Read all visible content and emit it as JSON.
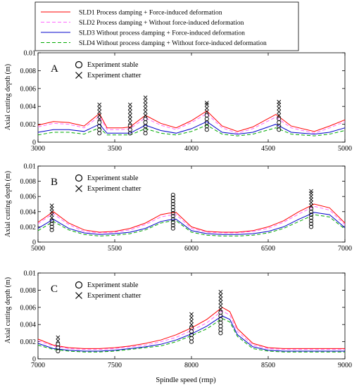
{
  "legend": {
    "entries": [
      {
        "label": "SLD1   Process damping + Force-induced deformation",
        "color": "#ff0000",
        "dash": "solid"
      },
      {
        "label": "SLD2   Process damping + Without force-induced deformation",
        "color": "#ff66ff",
        "dash": "dashed"
      },
      {
        "label": "SLD3   Without process damping + Force-induced deformation",
        "color": "#0000cc",
        "dash": "solid"
      },
      {
        "label": "SLD4   Without process damping + Without force-induced deformation",
        "color": "#00aa00",
        "dash": "dashed"
      }
    ]
  },
  "chart_data": [
    {
      "type": "line",
      "panel_label": "A",
      "ylabel": "Axial cutting depth  (m)",
      "xlabel": "",
      "xlim": [
        3000,
        5000
      ],
      "ylim": [
        0,
        0.01
      ],
      "xticks": [
        3000,
        3500,
        4000,
        4500,
        5000
      ],
      "yticks": [
        0,
        0.002,
        0.004,
        0.006,
        0.008,
        0.01
      ],
      "ytick_labels": [
        "0",
        "0.002",
        "0.004",
        "0.006",
        "0.008",
        "0.01"
      ],
      "inner_legend": [
        "Experiment  stable",
        "Experiment  chatter"
      ],
      "x": [
        3000,
        3100,
        3200,
        3300,
        3400,
        3450,
        3550,
        3600,
        3700,
        3800,
        3900,
        4000,
        4100,
        4200,
        4300,
        4400,
        4550,
        4650,
        4800,
        4900,
        5000
      ],
      "series": [
        {
          "name": "SLD1",
          "values": [
            0.0019,
            0.0023,
            0.0022,
            0.0018,
            0.0032,
            0.0016,
            0.0016,
            0.0017,
            0.003,
            0.0021,
            0.0016,
            0.0024,
            0.0035,
            0.0018,
            0.0012,
            0.0017,
            0.0031,
            0.0018,
            0.0012,
            0.0018,
            0.0025
          ]
        },
        {
          "name": "SLD2",
          "values": [
            0.0017,
            0.0021,
            0.002,
            0.0016,
            0.0029,
            0.0014,
            0.0014,
            0.0015,
            0.0027,
            0.0019,
            0.0014,
            0.0022,
            0.0032,
            0.0016,
            0.001,
            0.0015,
            0.0028,
            0.0016,
            0.001,
            0.0016,
            0.0023
          ]
        },
        {
          "name": "SLD3",
          "values": [
            0.0011,
            0.0014,
            0.0014,
            0.0012,
            0.002,
            0.001,
            0.001,
            0.001,
            0.0019,
            0.0013,
            0.001,
            0.0015,
            0.0023,
            0.0011,
            0.0009,
            0.0011,
            0.002,
            0.0011,
            0.0009,
            0.0011,
            0.0016
          ]
        },
        {
          "name": "SLD4",
          "values": [
            0.0008,
            0.0011,
            0.0011,
            0.0009,
            0.0016,
            0.0008,
            0.0008,
            0.0008,
            0.0015,
            0.001,
            0.0008,
            0.0012,
            0.0019,
            0.0009,
            0.0007,
            0.0009,
            0.0016,
            0.0009,
            0.0007,
            0.0009,
            0.0013
          ]
        }
      ],
      "experiments": [
        {
          "x": 3400,
          "stable": [
            0.001,
            0.0014,
            0.0018,
            0.0022
          ],
          "chatter": [
            0.0026,
            0.003,
            0.0034,
            0.0038,
            0.0042
          ]
        },
        {
          "x": 3600,
          "stable": [
            0.001,
            0.0014,
            0.0018
          ],
          "chatter": [
            0.0022,
            0.0026,
            0.003,
            0.0034,
            0.0038,
            0.0042
          ]
        },
        {
          "x": 3700,
          "stable": [
            0.001,
            0.0014,
            0.0018,
            0.0022,
            0.0026
          ],
          "chatter": [
            0.003,
            0.0034,
            0.0038,
            0.0042,
            0.0046,
            0.005
          ]
        },
        {
          "x": 4100,
          "stable": [
            0.0014,
            0.0018,
            0.0022,
            0.0026,
            0.003
          ],
          "chatter": [
            0.0034,
            0.0038,
            0.0042,
            0.0044
          ]
        },
        {
          "x": 4570,
          "stable": [
            0.0014,
            0.0018,
            0.0022,
            0.0026
          ],
          "chatter": [
            0.003,
            0.0034,
            0.0038,
            0.0042,
            0.0045
          ]
        }
      ]
    },
    {
      "type": "line",
      "panel_label": "B",
      "ylabel": "Axial cutting depth  (m)",
      "xlabel": "",
      "xlim": [
        5000,
        7000
      ],
      "ylim": [
        0,
        0.01
      ],
      "xticks": [
        5000,
        5500,
        6000,
        6500,
        7000
      ],
      "yticks": [
        0,
        0.002,
        0.004,
        0.006,
        0.008,
        0.01
      ],
      "ytick_labels": [
        "0",
        "0.002",
        "0.004",
        "0.006",
        "0.008",
        "0.01"
      ],
      "inner_legend": [
        "Experiment  stable",
        "Experiment  chatter"
      ],
      "x": [
        5000,
        5050,
        5100,
        5200,
        5300,
        5400,
        5500,
        5600,
        5700,
        5800,
        5850,
        5900,
        6000,
        6100,
        6200,
        6300,
        6400,
        6500,
        6600,
        6700,
        6800,
        6900,
        7000
      ],
      "series": [
        {
          "name": "SLD1",
          "values": [
            0.0026,
            0.0033,
            0.004,
            0.0025,
            0.0016,
            0.0013,
            0.0014,
            0.0018,
            0.0025,
            0.0036,
            0.0038,
            0.0039,
            0.002,
            0.0014,
            0.0013,
            0.0013,
            0.0015,
            0.002,
            0.0028,
            0.004,
            0.005,
            0.0045,
            0.0025
          ]
        },
        {
          "name": "SLD2",
          "values": [
            0.0024,
            0.0031,
            0.0037,
            0.0023,
            0.0014,
            0.0012,
            0.0013,
            0.0016,
            0.0023,
            0.0033,
            0.0035,
            0.0036,
            0.0018,
            0.0013,
            0.0012,
            0.0012,
            0.0014,
            0.0018,
            0.0026,
            0.0037,
            0.0047,
            0.0042,
            0.0023
          ]
        },
        {
          "name": "SLD3",
          "values": [
            0.0018,
            0.0024,
            0.003,
            0.0018,
            0.0012,
            0.001,
            0.0011,
            0.0013,
            0.0018,
            0.0027,
            0.0029,
            0.003,
            0.0015,
            0.0011,
            0.001,
            0.001,
            0.0011,
            0.0014,
            0.002,
            0.003,
            0.0039,
            0.0036,
            0.0019
          ]
        },
        {
          "name": "SLD4",
          "values": [
            0.0015,
            0.0021,
            0.0027,
            0.0016,
            0.001,
            0.0008,
            0.0009,
            0.0011,
            0.0016,
            0.0025,
            0.0027,
            0.0028,
            0.0013,
            0.0009,
            0.0008,
            0.0008,
            0.0009,
            0.0012,
            0.0018,
            0.0027,
            0.0036,
            0.0033,
            0.0017
          ]
        }
      ],
      "experiments": [
        {
          "x": 5090,
          "stable": [
            0.0016,
            0.002,
            0.0024,
            0.0028
          ],
          "chatter": [
            0.0032,
            0.0036,
            0.004,
            0.0044,
            0.0048
          ]
        },
        {
          "x": 5880,
          "stable": [
            0.0018,
            0.0022,
            0.0026,
            0.003,
            0.0034,
            0.0038,
            0.0042,
            0.0046,
            0.005,
            0.0054,
            0.0058,
            0.0062
          ],
          "chatter": []
        },
        {
          "x": 6780,
          "stable": [
            0.002,
            0.0024,
            0.0028,
            0.0032,
            0.0036,
            0.004,
            0.0044
          ],
          "chatter": [
            0.0048,
            0.0052,
            0.0056,
            0.006,
            0.0064,
            0.0067
          ]
        }
      ]
    },
    {
      "type": "line",
      "panel_label": "C",
      "ylabel": "Axial cutting depth  (m)",
      "xlabel": "Spindle speed  (rmp)",
      "xlim": [
        7000,
        9000
      ],
      "ylim": [
        0,
        0.01
      ],
      "xticks": [
        7000,
        7500,
        8000,
        8500,
        9000
      ],
      "yticks": [
        0,
        0.002,
        0.004,
        0.006,
        0.008,
        0.01
      ],
      "ytick_labels": [
        "0",
        "0.002",
        "0.004",
        "0.006",
        "0.008",
        "0.01"
      ],
      "inner_legend": [
        "Experiment  stable",
        "Experiment  chatter"
      ],
      "x": [
        7000,
        7100,
        7200,
        7300,
        7400,
        7500,
        7600,
        7700,
        7800,
        7900,
        8000,
        8100,
        8200,
        8250,
        8300,
        8400,
        8500,
        8600,
        8700,
        8800,
        8900,
        9000
      ],
      "series": [
        {
          "name": "SLD1",
          "values": [
            0.0023,
            0.0016,
            0.0013,
            0.0012,
            0.0012,
            0.0013,
            0.0015,
            0.0018,
            0.0022,
            0.0028,
            0.0036,
            0.0046,
            0.006,
            0.0055,
            0.0035,
            0.0018,
            0.0013,
            0.0012,
            0.0012,
            0.0012,
            0.0012,
            0.0012
          ]
        },
        {
          "name": "SLD2",
          "values": [
            0.0021,
            0.0015,
            0.0012,
            0.0011,
            0.0011,
            0.0012,
            0.0014,
            0.0016,
            0.002,
            0.0025,
            0.0033,
            0.0042,
            0.0056,
            0.0051,
            0.0032,
            0.0016,
            0.0012,
            0.0011,
            0.0011,
            0.0011,
            0.0011,
            0.0011
          ]
        },
        {
          "name": "SLD3",
          "values": [
            0.0018,
            0.0012,
            0.001,
            0.0009,
            0.0009,
            0.001,
            0.0012,
            0.0014,
            0.0017,
            0.0022,
            0.0029,
            0.0038,
            0.005,
            0.0046,
            0.0028,
            0.0014,
            0.001,
            0.0009,
            0.0009,
            0.0009,
            0.0009,
            0.0009
          ]
        },
        {
          "name": "SLD4",
          "values": [
            0.0016,
            0.0011,
            0.0009,
            0.0008,
            0.0008,
            0.0009,
            0.0011,
            0.0013,
            0.0015,
            0.002,
            0.0027,
            0.0035,
            0.0047,
            0.0043,
            0.0026,
            0.0012,
            0.0009,
            0.0008,
            0.0008,
            0.0008,
            0.0008,
            0.0008
          ]
        }
      ],
      "experiments": [
        {
          "x": 7130,
          "stable": [
            0.0009,
            0.0013,
            0.0017
          ],
          "chatter": [
            0.0021,
            0.0025
          ]
        },
        {
          "x": 8000,
          "stable": [
            0.002,
            0.0024,
            0.0028,
            0.0032,
            0.0036
          ],
          "chatter": [
            0.004,
            0.0044,
            0.0048,
            0.0052
          ]
        },
        {
          "x": 8190,
          "stable": [
            0.003,
            0.0034,
            0.0038,
            0.0042,
            0.0046,
            0.005,
            0.0054
          ],
          "chatter": [
            0.0058,
            0.0062,
            0.0066,
            0.007,
            0.0074,
            0.0078
          ]
        }
      ]
    }
  ]
}
